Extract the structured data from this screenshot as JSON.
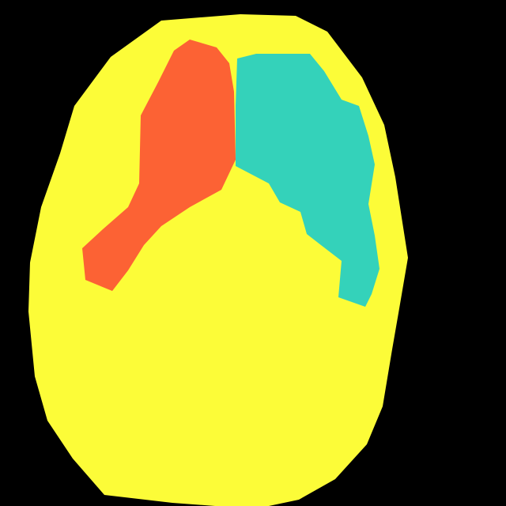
{
  "segmentation": {
    "background": {
      "label": "background",
      "color": "#000000"
    },
    "regions": [
      {
        "label": "outer-region",
        "color": "#FCFC38"
      },
      {
        "label": "left-region",
        "color": "#FC6234"
      },
      {
        "label": "right-region",
        "color": "#34D2BA"
      }
    ]
  }
}
